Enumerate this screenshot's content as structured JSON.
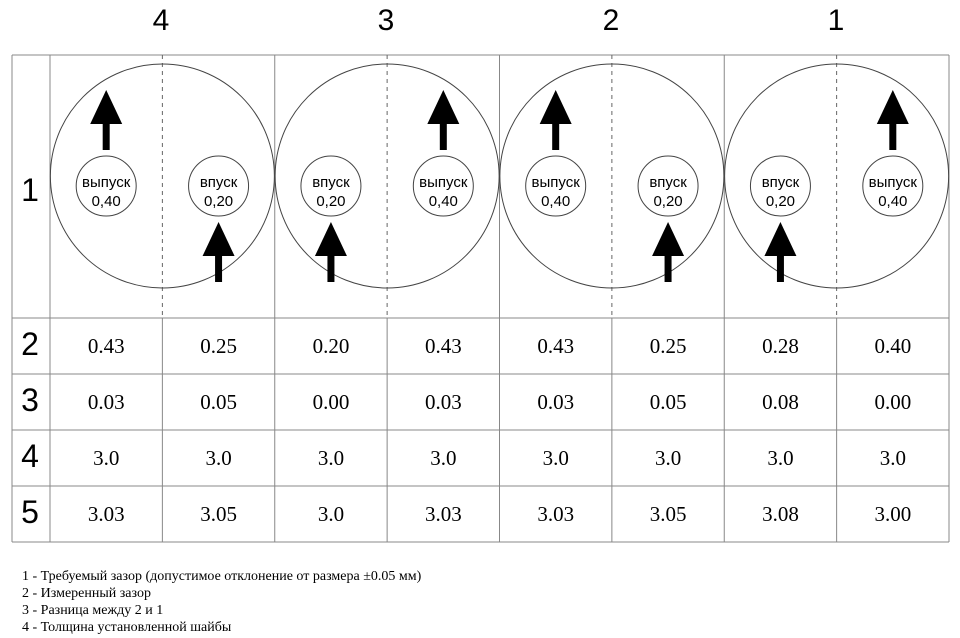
{
  "cylinders": [
    "4",
    "3",
    "2",
    "1"
  ],
  "row_labels": [
    "1",
    "2",
    "3",
    "4",
    "5"
  ],
  "valves": [
    {
      "type": "выпуск",
      "value": "0,40",
      "arrow": "top"
    },
    {
      "type": "впуск",
      "value": "0,20",
      "arrow": "bottom"
    },
    {
      "type": "впуск",
      "value": "0,20",
      "arrow": "bottom"
    },
    {
      "type": "выпуск",
      "value": "0,40",
      "arrow": "top"
    },
    {
      "type": "выпуск",
      "value": "0,40",
      "arrow": "top"
    },
    {
      "type": "впуск",
      "value": "0,20",
      "arrow": "bottom"
    },
    {
      "type": "впуск",
      "value": "0,20",
      "arrow": "bottom"
    },
    {
      "type": "выпуск",
      "value": "0,40",
      "arrow": "top"
    }
  ],
  "rows": [
    [
      "0.43",
      "0.25",
      "0.20",
      "0.43",
      "0.43",
      "0.25",
      "0.28",
      "0.40"
    ],
    [
      "0.03",
      "0.05",
      "0.00",
      "0.03",
      "0.03",
      "0.05",
      "0.08",
      "0.00"
    ],
    [
      "3.0",
      "3.0",
      "3.0",
      "3.0",
      "3.0",
      "3.0",
      "3.0",
      "3.0"
    ],
    [
      "3.03",
      "3.05",
      "3.0",
      "3.03",
      "3.03",
      "3.05",
      "3.08",
      "3.00"
    ]
  ],
  "legend": [
    "1 - Требуемый зазор (допустимое отклонение от размера ±0.05 мм)",
    "2 - Измеренный зазор",
    "3 - Разница между 2 и 1",
    "4 - Толщина установленной шайбы"
  ]
}
